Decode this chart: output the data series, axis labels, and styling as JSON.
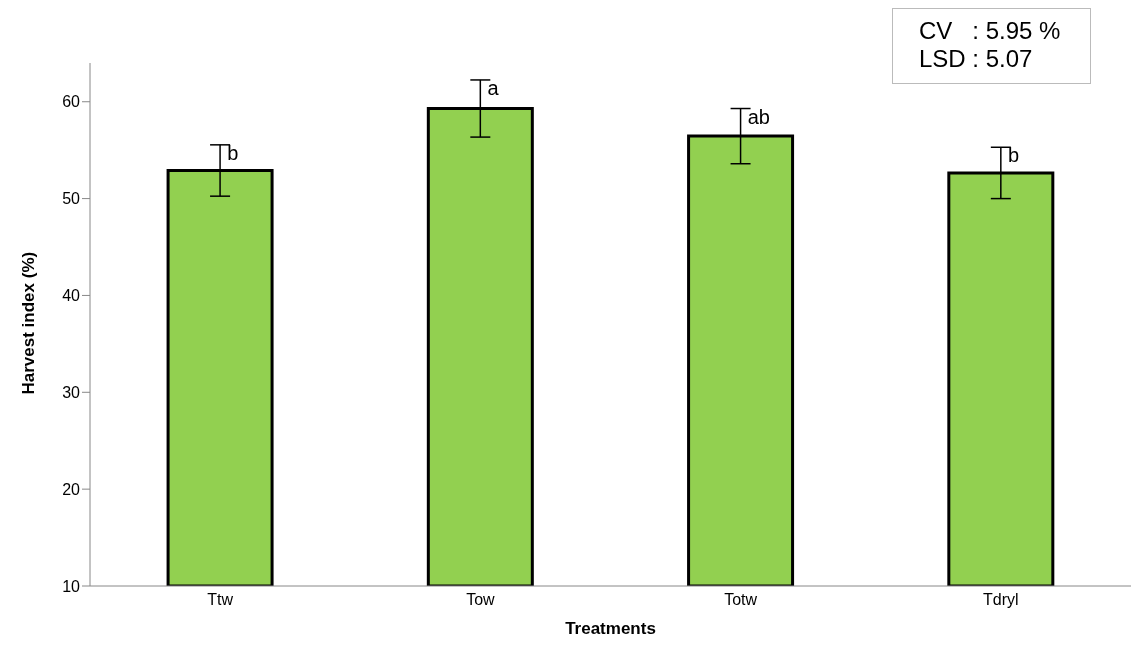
{
  "chart_data": {
    "type": "bar",
    "xlabel": "Treatments",
    "ylabel": "Harvest index (%)",
    "categories": [
      "Ttw",
      "Tow",
      "Totw",
      "Tdryl"
    ],
    "values": [
      52.9,
      59.3,
      56.45,
      52.65
    ],
    "errors": [
      2.65,
      2.95,
      2.85,
      2.65
    ],
    "color": "#92d050",
    "ylim": [
      10,
      64
    ],
    "yticks": [
      10,
      20,
      30,
      40,
      50,
      60
    ],
    "grid": false,
    "legend": false,
    "annotations": [
      {
        "text": "b",
        "x": "Ttw",
        "y": 55.55
      },
      {
        "text": "a",
        "x": "Tow",
        "y": 62.25
      },
      {
        "text": "ab",
        "x": "Totw",
        "y": 59.3
      },
      {
        "text": "b",
        "x": "Tdryl",
        "y": 55.3
      },
      "CV   : 5.95 %",
      "LSD : 5.07"
    ]
  }
}
